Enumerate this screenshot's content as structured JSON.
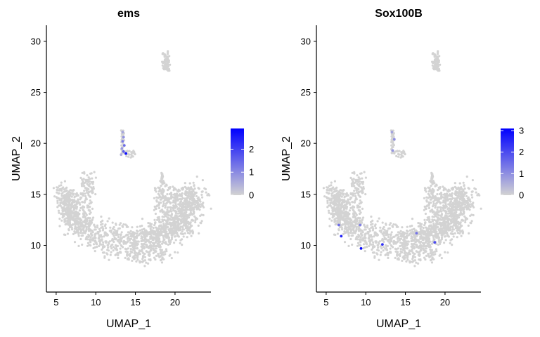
{
  "chart_data": [
    {
      "type": "scatter",
      "title": "ems",
      "xlabel": "UMAP_1",
      "ylabel": "UMAP_2",
      "xlim": [
        4.3,
        24.0
      ],
      "ylim": [
        5.7,
        31.3
      ],
      "xticks": [
        5,
        10,
        15,
        20
      ],
      "yticks": [
        10,
        15,
        20,
        25,
        30
      ],
      "grid": false,
      "colorscale": {
        "low": "#d3d3d3",
        "high": "#0000ff",
        "min": 0,
        "max": 2.9,
        "ticks": [
          0,
          1,
          2
        ]
      },
      "highlighted_points": [
        {
          "x": 13.4,
          "y": 21.1,
          "value": 0.6
        },
        {
          "x": 13.5,
          "y": 20.6,
          "value": 0.9
        },
        {
          "x": 13.4,
          "y": 20.2,
          "value": 1.2
        },
        {
          "x": 13.6,
          "y": 19.8,
          "value": 1.4
        },
        {
          "x": 13.3,
          "y": 19.5,
          "value": 0.8
        },
        {
          "x": 13.5,
          "y": 19.2,
          "value": 1.6
        },
        {
          "x": 13.8,
          "y": 19.0,
          "value": 2.7
        },
        {
          "x": 13.2,
          "y": 18.9,
          "value": 0.5
        }
      ]
    },
    {
      "type": "scatter",
      "title": "Sox100B",
      "xlabel": "UMAP_1",
      "ylabel": "UMAP_2",
      "xlim": [
        4.3,
        24.0
      ],
      "ylim": [
        5.7,
        31.3
      ],
      "xticks": [
        5,
        10,
        15,
        20
      ],
      "yticks": [
        10,
        15,
        20,
        25,
        30
      ],
      "grid": false,
      "colorscale": {
        "low": "#d3d3d3",
        "high": "#0000ff",
        "min": 0,
        "max": 3.1,
        "ticks": [
          0,
          1,
          2,
          3
        ]
      },
      "highlighted_points": [
        {
          "x": 13.3,
          "y": 21.1,
          "value": 0.7
        },
        {
          "x": 13.6,
          "y": 20.4,
          "value": 1.0
        },
        {
          "x": 13.4,
          "y": 19.3,
          "value": 0.9
        },
        {
          "x": 6.9,
          "y": 10.9,
          "value": 2.6
        },
        {
          "x": 6.6,
          "y": 12.0,
          "value": 1.5
        },
        {
          "x": 9.4,
          "y": 9.7,
          "value": 3.0
        },
        {
          "x": 12.1,
          "y": 10.1,
          "value": 2.4
        },
        {
          "x": 9.3,
          "y": 12.0,
          "value": 1.2
        },
        {
          "x": 18.7,
          "y": 10.3,
          "value": 2.0
        },
        {
          "x": 16.4,
          "y": 11.2,
          "value": 1.4
        }
      ]
    }
  ]
}
